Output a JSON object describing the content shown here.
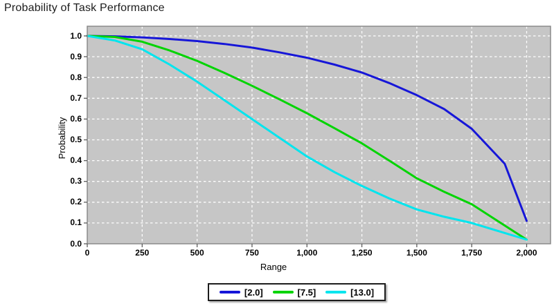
{
  "chart_data": {
    "type": "line",
    "title": "Probability of Task Performance",
    "xlabel": "Range",
    "ylabel": "Probability",
    "xlim": [
      0,
      2000
    ],
    "ylim": [
      0.0,
      1.0
    ],
    "grid": "white dashed gridlines on gray plot background",
    "legend_position": "bottom-center",
    "colors": {
      "plot_background": "#c6c6c6",
      "gridline": "#ffffff",
      "plot_border": "#8a8a8a",
      "tick_mark": "#5a5a5a",
      "text": "#000000"
    },
    "x_ticks": [
      0,
      250,
      500,
      750,
      1000,
      1250,
      1500,
      1750,
      2000
    ],
    "x_tick_labels": [
      "0",
      "250",
      "500",
      "750",
      "1,000",
      "1,250",
      "1,500",
      "1,750",
      "2,000"
    ],
    "y_ticks": [
      0.0,
      0.1,
      0.2,
      0.3,
      0.4,
      0.5,
      0.6,
      0.7,
      0.8,
      0.9,
      1.0
    ],
    "y_tick_labels": [
      "0.0",
      "0.1",
      "0.2",
      "0.3",
      "0.4",
      "0.5",
      "0.6",
      "0.7",
      "0.8",
      "0.9",
      "1.0"
    ],
    "series": [
      {
        "name": "[2.0]",
        "color": "#1616d8",
        "points": [
          [
            0,
            1.0
          ],
          [
            125,
            0.998
          ],
          [
            250,
            0.993
          ],
          [
            375,
            0.985
          ],
          [
            500,
            0.975
          ],
          [
            625,
            0.961
          ],
          [
            750,
            0.944
          ],
          [
            875,
            0.921
          ],
          [
            1000,
            0.895
          ],
          [
            1125,
            0.862
          ],
          [
            1250,
            0.824
          ],
          [
            1375,
            0.773
          ],
          [
            1500,
            0.715
          ],
          [
            1625,
            0.648
          ],
          [
            1750,
            0.553
          ],
          [
            1900,
            0.385
          ],
          [
            2000,
            0.11
          ]
        ]
      },
      {
        "name": "[7.5]",
        "color": "#00d400",
        "points": [
          [
            0,
            1.0
          ],
          [
            125,
            0.995
          ],
          [
            250,
            0.972
          ],
          [
            375,
            0.93
          ],
          [
            500,
            0.88
          ],
          [
            625,
            0.822
          ],
          [
            750,
            0.76
          ],
          [
            875,
            0.695
          ],
          [
            1000,
            0.628
          ],
          [
            1125,
            0.556
          ],
          [
            1250,
            0.483
          ],
          [
            1375,
            0.4
          ],
          [
            1500,
            0.315
          ],
          [
            1625,
            0.25
          ],
          [
            1750,
            0.19
          ],
          [
            1875,
            0.105
          ],
          [
            2000,
            0.02
          ]
        ]
      },
      {
        "name": "[13.0]",
        "color": "#00e5ee",
        "points": [
          [
            0,
            1.0
          ],
          [
            125,
            0.978
          ],
          [
            250,
            0.936
          ],
          [
            375,
            0.862
          ],
          [
            500,
            0.78
          ],
          [
            625,
            0.69
          ],
          [
            750,
            0.6
          ],
          [
            875,
            0.51
          ],
          [
            1000,
            0.42
          ],
          [
            1125,
            0.345
          ],
          [
            1250,
            0.278
          ],
          [
            1375,
            0.218
          ],
          [
            1500,
            0.165
          ],
          [
            1625,
            0.13
          ],
          [
            1750,
            0.1
          ],
          [
            1875,
            0.06
          ],
          [
            2000,
            0.02
          ]
        ]
      }
    ]
  }
}
